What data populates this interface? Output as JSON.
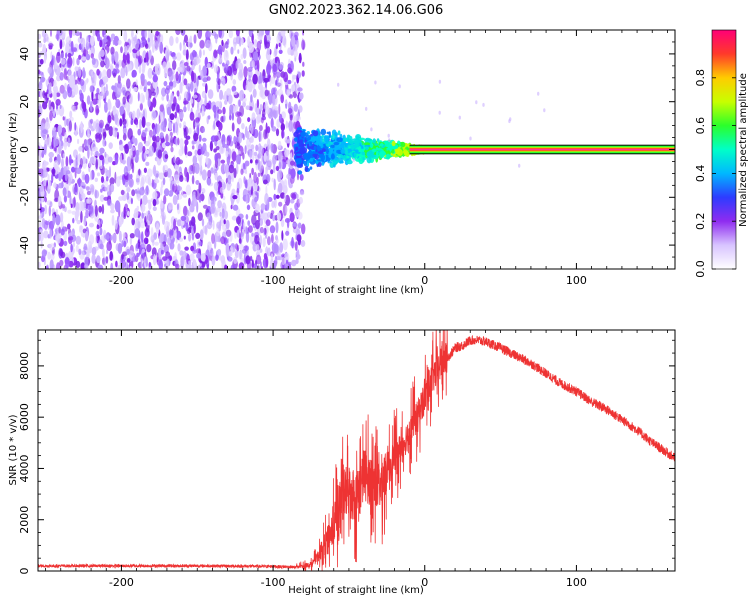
{
  "title": "GN02.2023.362.14.06.G06",
  "colors": {
    "snr_line": "#ee3333",
    "background": "#ffffff",
    "axis": "#000000",
    "colormap": [
      "#ffffff",
      "#d8c4ff",
      "#8f2cf0",
      "#2d3cff",
      "#00b8ff",
      "#00ffc8",
      "#2bff2b",
      "#c8ff00",
      "#ffcc00",
      "#ff3a2a",
      "#ff0077"
    ]
  },
  "chart_data": [
    {
      "type": "heatmap",
      "xlabel": "Height of straight line (km)",
      "ylabel": "Frequency (Hz)",
      "xlim": [
        -255,
        165
      ],
      "ylim": [
        -50,
        50
      ],
      "x_ticks": [
        -200,
        -100,
        0,
        100
      ],
      "y_ticks": [
        -40,
        -20,
        0,
        20,
        40
      ],
      "x_tick_labels": [
        "-200",
        "-100",
        "0",
        "100"
      ],
      "y_tick_labels": [
        "-40",
        "-20",
        "0",
        "20",
        "40"
      ],
      "noise_region_x": [
        -255,
        -80
      ],
      "transition_region_x": [
        -85,
        0
      ],
      "tone_frequency": 0,
      "tone_region_x": [
        -10,
        165
      ],
      "colorbar": {
        "label": "Normalized spectral amplitude",
        "range": [
          0.0,
          1.0
        ],
        "ticks": [
          0.0,
          0.2,
          0.4,
          0.6,
          0.8
        ],
        "tick_labels": [
          "0.0",
          "0.2",
          "0.4",
          "0.6",
          "0.8"
        ]
      }
    },
    {
      "type": "line",
      "xlabel": "Height of straight line (km)",
      "ylabel": "SNR (10 * v/v)",
      "xlim": [
        -255,
        165
      ],
      "ylim": [
        0,
        9400
      ],
      "x_ticks": [
        -200,
        -100,
        0,
        100
      ],
      "y_ticks": [
        0,
        2000,
        4000,
        6000,
        8000
      ],
      "x_tick_labels": [
        "-200",
        "-100",
        "0",
        "100"
      ],
      "y_tick_labels": [
        "0",
        "2000",
        "4000",
        "6000",
        "8000"
      ],
      "series": [
        {
          "x": [
            -255,
            -200,
            -150,
            -100,
            -85,
            -75,
            -70,
            -62,
            -55,
            -50,
            -45,
            -40,
            -35,
            -30,
            -25,
            -20,
            -15,
            -10,
            -5,
            0,
            5,
            10,
            15,
            20,
            25,
            30,
            35,
            40,
            50,
            60,
            70,
            80,
            90,
            100,
            110,
            120,
            130,
            140,
            150,
            160,
            165
          ],
          "y": [
            200,
            200,
            200,
            180,
            150,
            250,
            600,
            1500,
            2800,
            3200,
            2800,
            3800,
            3500,
            3300,
            4000,
            4500,
            4800,
            5500,
            6000,
            6800,
            7500,
            8000,
            8300,
            8700,
            8800,
            9000,
            9000,
            8950,
            8700,
            8400,
            8100,
            7700,
            7300,
            7000,
            6600,
            6300,
            5900,
            5500,
            5000,
            4600,
            4400
          ]
        }
      ]
    }
  ]
}
